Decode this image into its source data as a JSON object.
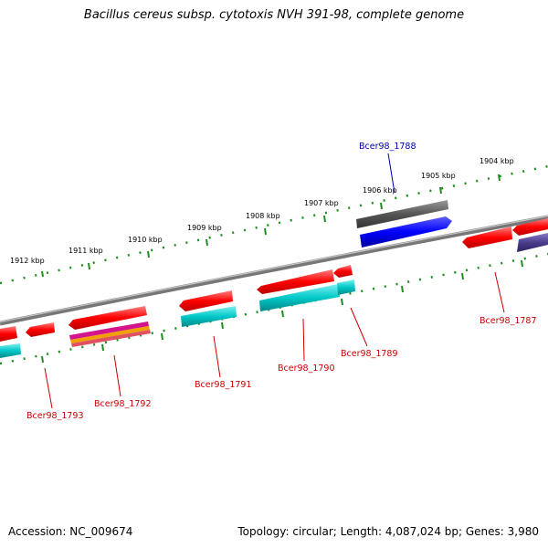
{
  "title": "Bacillus cereus subsp. cytotoxis NVH 391-98, complete genome",
  "footer": {
    "accession": "Accession: NC_009674",
    "summary": "Topology: circular; Length: 4,087,024 bp; Genes: 3,980"
  },
  "scale_labels": [
    "1904 kbp",
    "1905 kbp",
    "1906 kbp",
    "1907 kbp",
    "1908 kbp",
    "1909 kbp",
    "1910 kbp",
    "1911 kbp",
    "1912 kbp"
  ],
  "gene_labels": {
    "g1787": "Bcer98_1787",
    "g1788": "Bcer98_1788",
    "g1789": "Bcer98_1789",
    "g1790": "Bcer98_1790",
    "g1791": "Bcer98_1791",
    "g1792": "Bcer98_1792",
    "g1793": "Bcer98_1793"
  },
  "colors": {
    "forward_cds": "#ff0000",
    "cog_cyan": "#00c8c8",
    "highlight_blue": "#0000ff",
    "grey_feature": "#555555",
    "purple_feature": "#4b3c8c",
    "tick_green": "#1e8c1e",
    "backbone_grey": "#808080",
    "label_red": "#cc0000",
    "label_blue": "#0000aa"
  }
}
